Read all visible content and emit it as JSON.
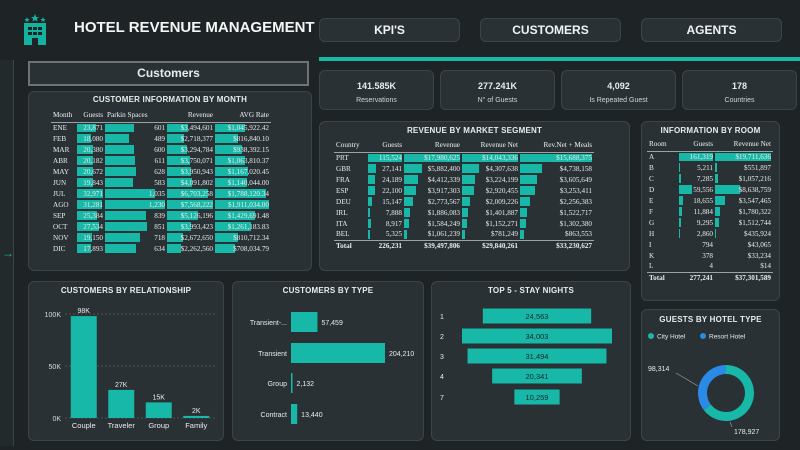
{
  "header": {
    "title": "HOTEL REVENUE MANAGEMENT",
    "logo_icon": "hotel-building-icon"
  },
  "nav": [
    {
      "label": "KPI'S"
    },
    {
      "label": "CUSTOMERS"
    },
    {
      "label": "AGENTS"
    }
  ],
  "page_title": "Customers",
  "side_arrow_icon": "arrow-right-icon",
  "accent_color": "#17b8a8",
  "kpis": [
    {
      "value": "141.585K",
      "label": "Reservations"
    },
    {
      "value": "277.241K",
      "label": "N° of Guests"
    },
    {
      "value": "4,092",
      "label": "Is Repeated Guest"
    },
    {
      "value": "178",
      "label": "Countries"
    }
  ],
  "month_table": {
    "title": "CUSTOMER INFORMATION BY MONTH",
    "columns": [
      "Month",
      "Guests",
      "Parkin Spaces",
      "Revenue",
      "AVG Rate"
    ],
    "rows": [
      {
        "month": "ENE",
        "guests": 23871,
        "guests_t": "23,871",
        "parking": 601,
        "parking_t": "601",
        "revenue": 3494601,
        "revenue_t": "$3,494,601",
        "avg": 1045922.42,
        "avg_t": "$1,045,922.42"
      },
      {
        "month": "FEB",
        "guests": 18080,
        "guests_t": "18,080",
        "parking": 489,
        "parking_t": "489",
        "revenue": 2718377,
        "revenue_t": "$2,718,377",
        "avg": 816840.1,
        "avg_t": "$816,840.10"
      },
      {
        "month": "MAR",
        "guests": 20380,
        "guests_t": "20,380",
        "parking": 600,
        "parking_t": "600",
        "revenue": 3294784,
        "revenue_t": "$3,294,784",
        "avg": 938392.15,
        "avg_t": "$938,392.15"
      },
      {
        "month": "ABR",
        "guests": 20182,
        "guests_t": "20,182",
        "parking": 611,
        "parking_t": "611",
        "revenue": 3750071,
        "revenue_t": "$3,750,071",
        "avg": 1063810.37,
        "avg_t": "$1,063,810.37"
      },
      {
        "month": "MAY",
        "guests": 20672,
        "guests_t": "20,672",
        "parking": 628,
        "parking_t": "628",
        "revenue": 3950943,
        "revenue_t": "$3,950,943",
        "avg": 1167020.45,
        "avg_t": "$1,167,020.45"
      },
      {
        "month": "JUN",
        "guests": 19843,
        "guests_t": "19,843",
        "parking": 583,
        "parking_t": "583",
        "revenue": 4091802,
        "revenue_t": "$4,091,802",
        "avg": 1140044.0,
        "avg_t": "$1,140,044.00"
      },
      {
        "month": "JUL",
        "guests": 32971,
        "guests_t": "32,971",
        "parking": 1035,
        "parking_t": "1,035",
        "revenue": 6703258,
        "revenue_t": "$6,703,258",
        "avg": 1788120.34,
        "avg_t": "$1,788,120.34"
      },
      {
        "month": "AGO",
        "guests": 31281,
        "guests_t": "31,281",
        "parking": 1230,
        "parking_t": "1,230",
        "revenue": 7568222,
        "revenue_t": "$7,568,222",
        "avg": 1911034.0,
        "avg_t": "$1,911,034.00"
      },
      {
        "month": "SEP",
        "guests": 25384,
        "guests_t": "25,384",
        "parking": 839,
        "parking_t": "839",
        "revenue": 5126196,
        "revenue_t": "$5,126,196",
        "avg": 1429691.48,
        "avg_t": "$1,429,691.48"
      },
      {
        "month": "OCT",
        "guests": 27534,
        "guests_t": "27,534",
        "parking": 851,
        "parking_t": "851",
        "revenue": 3993423,
        "revenue_t": "$3,993,423",
        "avg": 1261183.83,
        "avg_t": "$1,261,183.83"
      },
      {
        "month": "NOV",
        "guests": 19150,
        "guests_t": "19,150",
        "parking": 718,
        "parking_t": "718",
        "revenue": 2672650,
        "revenue_t": "$2,672,650",
        "avg": 810712.34,
        "avg_t": "$810,712.34"
      },
      {
        "month": "DIC",
        "guests": 17893,
        "guests_t": "17,893",
        "parking": 634,
        "parking_t": "634",
        "revenue": 2262560,
        "revenue_t": "$2,262,560",
        "avg": 708034.79,
        "avg_t": "$708,034.79"
      }
    ]
  },
  "segment_table": {
    "title": "REVENUE BY MARKET SEGMENT",
    "columns": [
      "Country",
      "Guests",
      "Revenue",
      "Revenue Net",
      "Rev.Net + Meals"
    ],
    "rows": [
      {
        "country": "PRT",
        "guests": 115524,
        "guests_t": "115,524",
        "revenue": 17980625,
        "revenue_t": "$17,980,625",
        "net": 14043336,
        "net_t": "$14,043,336",
        "meals": 15688375,
        "meals_t": "$15,688,375"
      },
      {
        "country": "GBR",
        "guests": 27141,
        "guests_t": "27,141",
        "revenue": 5882400,
        "revenue_t": "$5,882,400",
        "net": 4307638,
        "net_t": "$4,307,638",
        "meals": 4738158,
        "meals_t": "$4,738,158"
      },
      {
        "country": "FRA",
        "guests": 24189,
        "guests_t": "24,189",
        "revenue": 4412339,
        "revenue_t": "$4,412,339",
        "net": 3224199,
        "net_t": "$3,224,199",
        "meals": 3605649,
        "meals_t": "$3,605,649"
      },
      {
        "country": "ESP",
        "guests": 22100,
        "guests_t": "22,100",
        "revenue": 3917303,
        "revenue_t": "$3,917,303",
        "net": 2920455,
        "net_t": "$2,920,455",
        "meals": 3253411,
        "meals_t": "$3,253,411"
      },
      {
        "country": "DEU",
        "guests": 15147,
        "guests_t": "15,147",
        "revenue": 2773567,
        "revenue_t": "$2,773,567",
        "net": 2009226,
        "net_t": "$2,009,226",
        "meals": 2256383,
        "meals_t": "$2,256,383"
      },
      {
        "country": "IRL",
        "guests": 7888,
        "guests_t": "7,888",
        "revenue": 1886083,
        "revenue_t": "$1,886,083",
        "net": 1401887,
        "net_t": "$1,401,887",
        "meals": 1522717,
        "meals_t": "$1,522,717"
      },
      {
        "country": "ITA",
        "guests": 8917,
        "guests_t": "8,917",
        "revenue": 1584249,
        "revenue_t": "$1,584,249",
        "net": 1152271,
        "net_t": "$1,152,271",
        "meals": 1302380,
        "meals_t": "$1,302,380"
      },
      {
        "country": "BEL",
        "guests": 5325,
        "guests_t": "5,325",
        "revenue": 1061239,
        "revenue_t": "$1,061,239",
        "net": 781249,
        "net_t": "$781,249",
        "meals": 863553,
        "meals_t": "$863,553"
      }
    ],
    "total": {
      "label": "Total",
      "guests": "226,231",
      "revenue": "$39,497,806",
      "net": "$29,840,261",
      "meals": "$33,230,627"
    }
  },
  "room_table": {
    "title": "INFORMATION BY ROOM",
    "columns": [
      "Room",
      "Guests",
      "Revenue Net"
    ],
    "rows": [
      {
        "room": "A",
        "guests": 161319,
        "guests_t": "161,319",
        "net": 19711636,
        "net_t": "$19,711,636"
      },
      {
        "room": "B",
        "guests": 5211,
        "guests_t": "5,211",
        "net": 551897,
        "net_t": "$551,897"
      },
      {
        "room": "C",
        "guests": 7285,
        "guests_t": "7,285",
        "net": 1057216,
        "net_t": "$1,057,216"
      },
      {
        "room": "D",
        "guests": 59556,
        "guests_t": "59,556",
        "net": 8638759,
        "net_t": "$8,638,759"
      },
      {
        "room": "E",
        "guests": 18655,
        "guests_t": "18,655",
        "net": 3547465,
        "net_t": "$3,547,465"
      },
      {
        "room": "F",
        "guests": 11884,
        "guests_t": "11,884",
        "net": 1780322,
        "net_t": "$1,780,322"
      },
      {
        "room": "G",
        "guests": 9295,
        "guests_t": "9,295",
        "net": 1512744,
        "net_t": "$1,512,744"
      },
      {
        "room": "H",
        "guests": 2860,
        "guests_t": "2,860",
        "net": 435924,
        "net_t": "$435,924"
      },
      {
        "room": "I",
        "guests": 794,
        "guests_t": "794",
        "net": 43065,
        "net_t": "$43,065"
      },
      {
        "room": "K",
        "guests": 378,
        "guests_t": "378",
        "net": 33234,
        "net_t": "$33,234"
      },
      {
        "room": "L",
        "guests": 4,
        "guests_t": "4",
        "net": 14,
        "net_t": "$14"
      }
    ],
    "total": {
      "label": "Total",
      "guests": "277,241",
      "net": "$37,301,589"
    }
  },
  "chart_data": [
    {
      "type": "bar",
      "title": "CUSTOMERS BY RELATIONSHIP",
      "categories": [
        "Couple",
        "Traveler",
        "Group",
        "Family"
      ],
      "values": [
        98000,
        27000,
        15000,
        2000
      ],
      "value_labels": [
        "98K",
        "27K",
        "15K",
        "2K"
      ],
      "yticks": [
        "0K",
        "50K",
        "100K"
      ],
      "ylim": [
        0,
        100000
      ]
    },
    {
      "type": "bar",
      "orientation": "horizontal",
      "title": "CUSTOMERS BY TYPE",
      "categories": [
        "Transient-...",
        "Transient",
        "Group",
        "Contract"
      ],
      "values": [
        57459,
        204210,
        2132,
        13440
      ],
      "value_labels": [
        "57,459",
        "204,210",
        "2,132",
        "13,440"
      ]
    },
    {
      "type": "bar",
      "orientation": "funnel",
      "title": "TOP 5 - STAY NIGHTS",
      "categories": [
        "1",
        "2",
        "3",
        "4",
        "7"
      ],
      "values": [
        24563,
        34003,
        31494,
        20341,
        10259
      ],
      "value_labels": [
        "24,563",
        "34,003",
        "31,494",
        "20,341",
        "10,259"
      ]
    },
    {
      "type": "pie",
      "title": "GUESTS BY HOTEL TYPE",
      "series": [
        {
          "name": "City Hotel",
          "value": 178927,
          "label": "178,927",
          "color": "#17b8a8"
        },
        {
          "name": "Resort Hotel",
          "value": 98314,
          "label": "98,314",
          "color": "#2b8ae6"
        }
      ]
    }
  ]
}
